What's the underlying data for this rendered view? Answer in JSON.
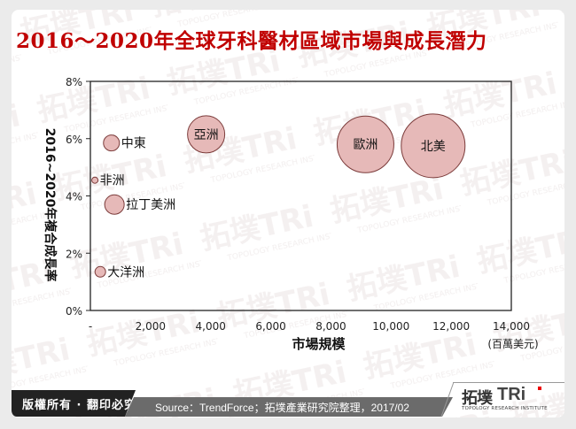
{
  "title": "2016～2020年全球牙科醫材區域市場與成長潛力",
  "footer": {
    "copyright": "版權所有 · 翻印必究",
    "source": "Source：TrendForce；拓墣產業研究院整理，2017/02",
    "logo_cn": "拓墣",
    "logo_en": "TRi",
    "logo_sub": "TOPOLOGY RESEARCH INSTITUTE"
  },
  "colors": {
    "title": "#c00000",
    "bubble_fill": "#e6b9b8",
    "bubble_stroke": "#7b3b3a"
  },
  "chart_data": {
    "type": "scatter",
    "subtype": "bubble",
    "title": "2016～2020年全球牙科醫材區域市場與成長潛力",
    "xlabel": "市場規模",
    "xunit": "(百萬美元)",
    "ylabel": "2016~2020年複合成長率",
    "xlim": [
      0,
      14000
    ],
    "ylim": [
      0,
      8
    ],
    "x_ticks": [
      "-",
      "2,000",
      "4,000",
      "6,000",
      "8,000",
      "10,000",
      "12,000",
      "14,000"
    ],
    "y_ticks": [
      "0%",
      "2%",
      "4%",
      "6%",
      "8%"
    ],
    "grid": false,
    "legend": "none",
    "points": [
      {
        "label": "北美",
        "x": 11400,
        "y": 5.75,
        "size": 36,
        "label_pos": "center"
      },
      {
        "label": "歐洲",
        "x": 9150,
        "y": 5.8,
        "size": 32,
        "label_pos": "center"
      },
      {
        "label": "亞洲",
        "x": 3850,
        "y": 6.15,
        "size": 21,
        "label_pos": "center"
      },
      {
        "label": "中東",
        "x": 700,
        "y": 5.85,
        "size": 9,
        "label_pos": "right"
      },
      {
        "label": "非洲",
        "x": 150,
        "y": 4.55,
        "size": 3.5,
        "label_pos": "right"
      },
      {
        "label": "拉丁美洲",
        "x": 800,
        "y": 3.7,
        "size": 11,
        "label_pos": "right"
      },
      {
        "label": "大洋洲",
        "x": 330,
        "y": 1.35,
        "size": 6,
        "label_pos": "right"
      }
    ]
  }
}
